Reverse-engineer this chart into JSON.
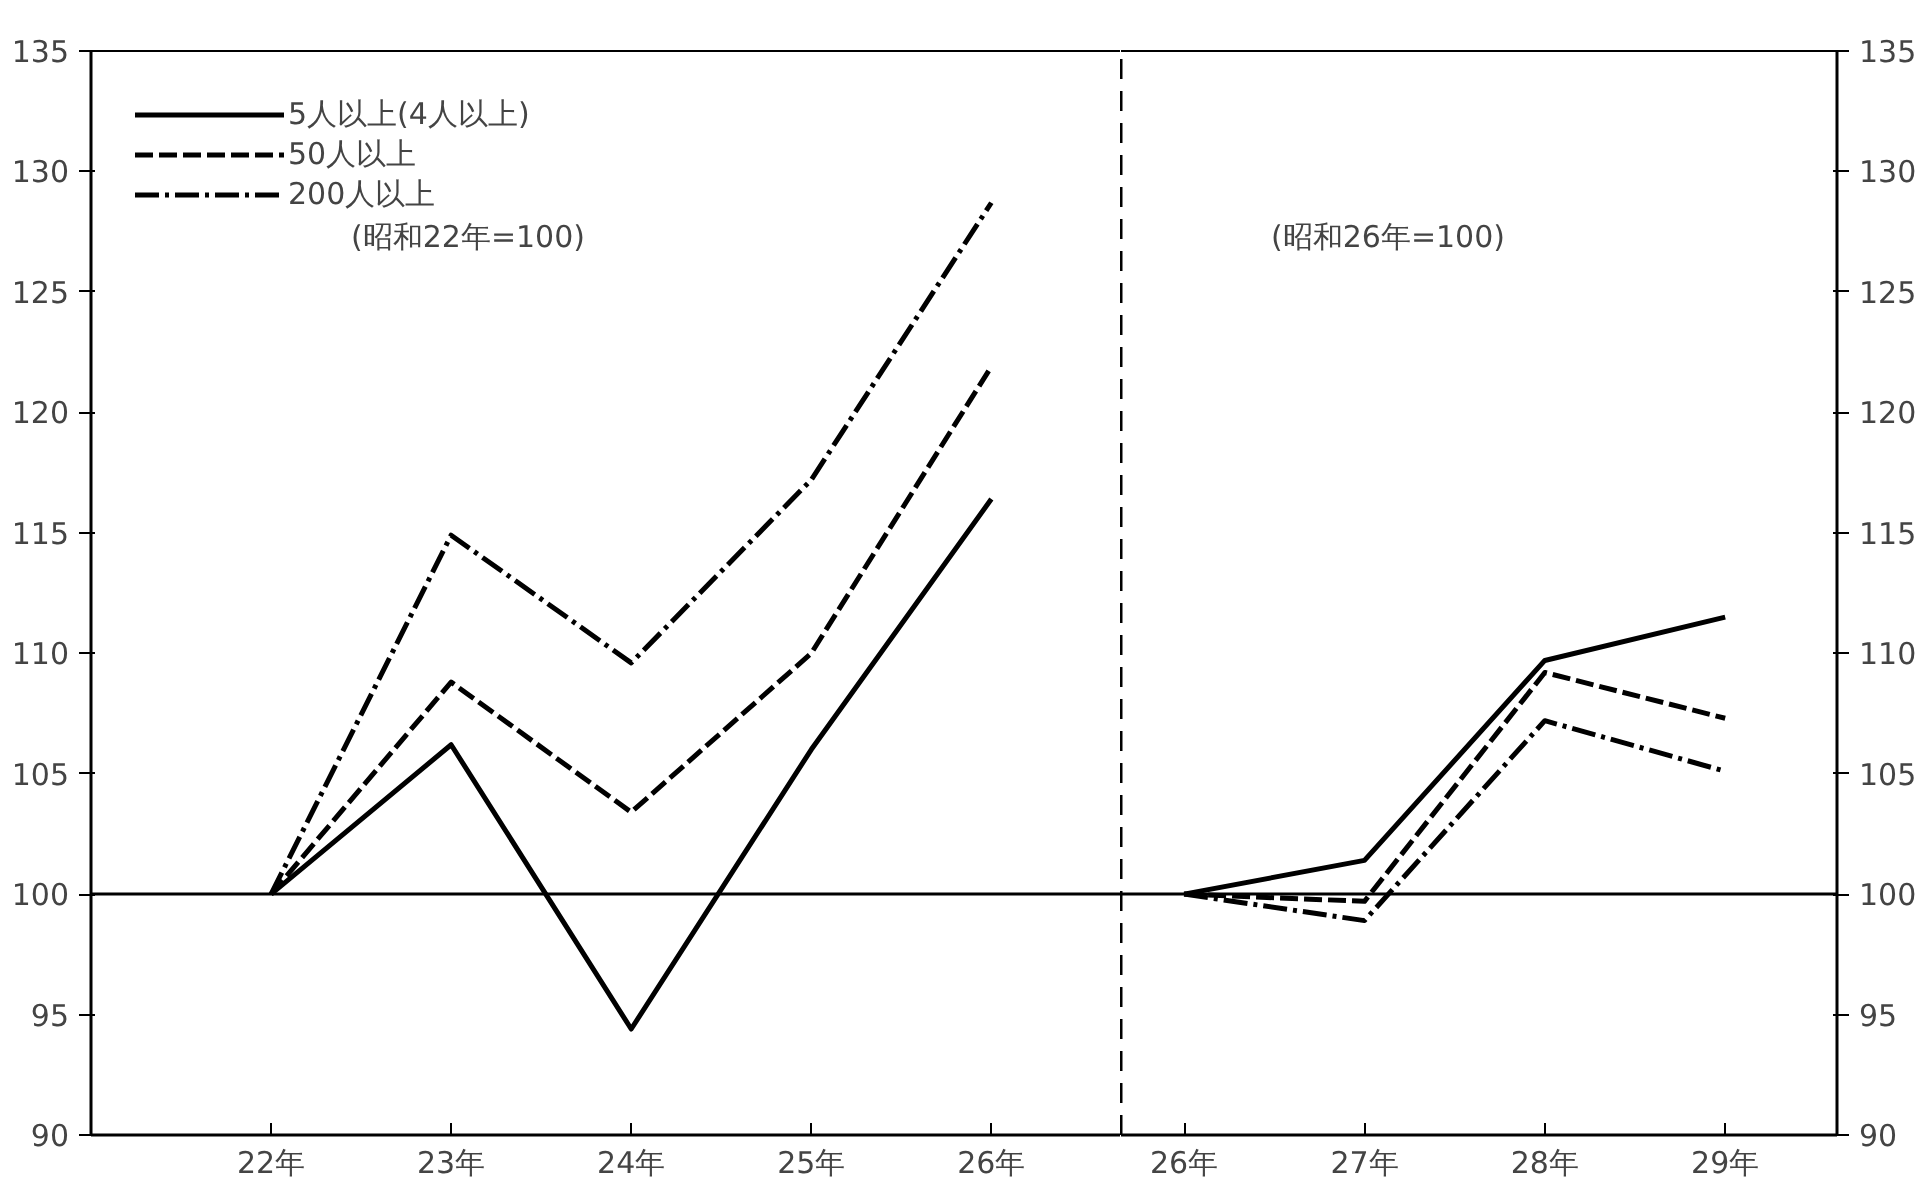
{
  "chart_data": [
    {
      "type": "line",
      "categories": [
        "22年",
        "23年",
        "24年",
        "25年",
        "26年"
      ],
      "series": [
        {
          "name": "5人以上(4人以上)",
          "color": "#000000",
          "line_style": "solid",
          "values": [
            100,
            106.2,
            94.4,
            106,
            116.4
          ]
        },
        {
          "name": "50人以上",
          "color": "#000000",
          "line_style": "dashed",
          "values": [
            100,
            108.8,
            103.4,
            110,
            121.9
          ]
        },
        {
          "name": "200人以上",
          "color": "#000000",
          "line_style": "dashdot",
          "values": [
            100,
            114.9,
            109.6,
            117.2,
            128.7
          ]
        }
      ],
      "ylim": [
        90,
        135
      ],
      "yticks": [
        90,
        95,
        100,
        105,
        110,
        115,
        120,
        125,
        130,
        135
      ],
      "ref_lines": [
        {
          "axis": "y",
          "value": 100
        }
      ],
      "annotations": [
        "(昭和22年=100)"
      ],
      "legend": "top left",
      "grid": false
    },
    {
      "type": "line",
      "categories": [
        "26年",
        "27年",
        "28年",
        "29年"
      ],
      "series": [
        {
          "color": "#000000",
          "line_style": "solid",
          "values": [
            100,
            101.4,
            109.7,
            111.5
          ]
        },
        {
          "color": "#000000",
          "line_style": "dashed",
          "values": [
            100,
            99.7,
            109.2,
            107.3
          ]
        },
        {
          "color": "#000000",
          "line_style": "dashdot",
          "values": [
            100,
            98.9,
            107.2,
            105.1
          ]
        }
      ],
      "ylim": [
        90,
        135
      ],
      "yticks": [
        90,
        95,
        100,
        105,
        110,
        115,
        120,
        125,
        130,
        135
      ],
      "ref_lines": [
        {
          "axis": "y",
          "value": 100
        }
      ],
      "annotations": [
        "(昭和26年=100)"
      ],
      "grid": false
    }
  ]
}
